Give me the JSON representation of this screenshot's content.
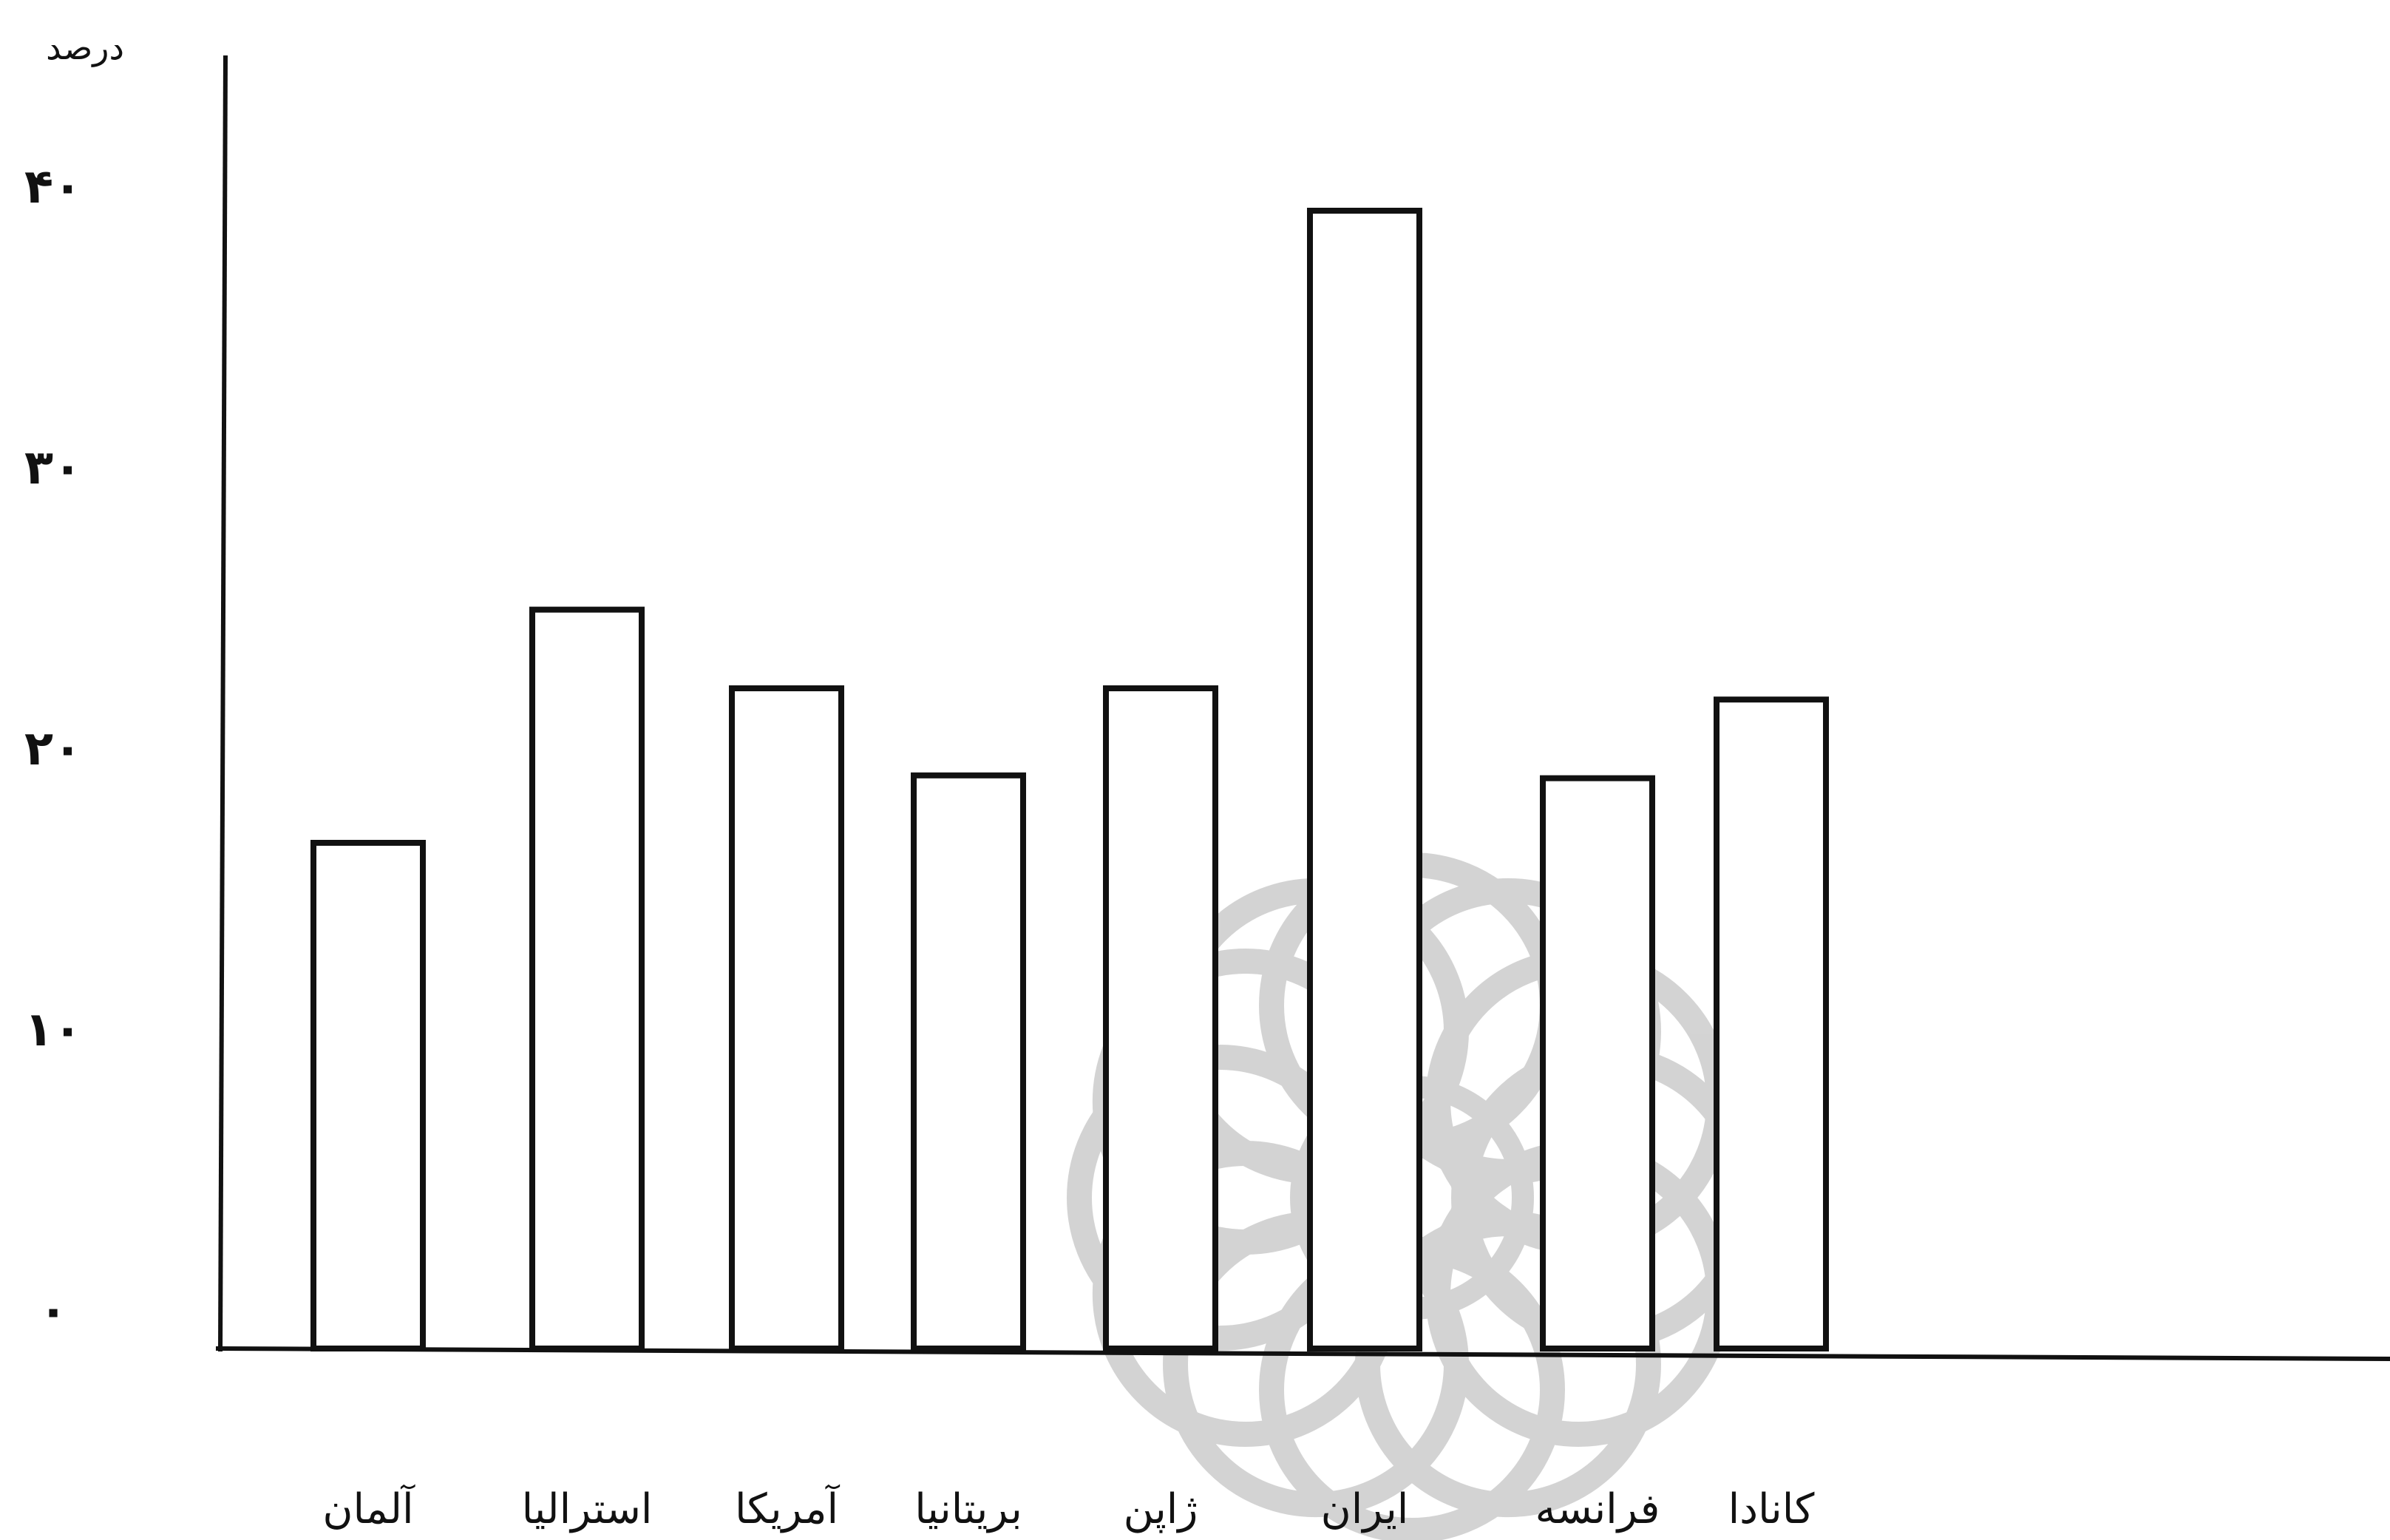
{
  "chart_data": {
    "type": "bar",
    "ylabel": "درصد",
    "ylim": [
      0,
      45
    ],
    "yticks": [
      0,
      10,
      20,
      30,
      40
    ],
    "ytick_labels": [
      "٠",
      "١٠",
      "٢٠",
      "٣٠",
      "۴٠"
    ],
    "categories": [
      "آلمان",
      "استراليا",
      "آمريكا",
      "بريتانيا",
      "ژاپن",
      "ايران",
      "فرانسه",
      "كانادا"
    ],
    "values": [
      18,
      26.3,
      23.5,
      20.4,
      23.5,
      40.5,
      20.3,
      23.1
    ],
    "bar_fill": "#ffffff",
    "bar_stroke": "#111111",
    "grid": false,
    "legend": "none"
  }
}
